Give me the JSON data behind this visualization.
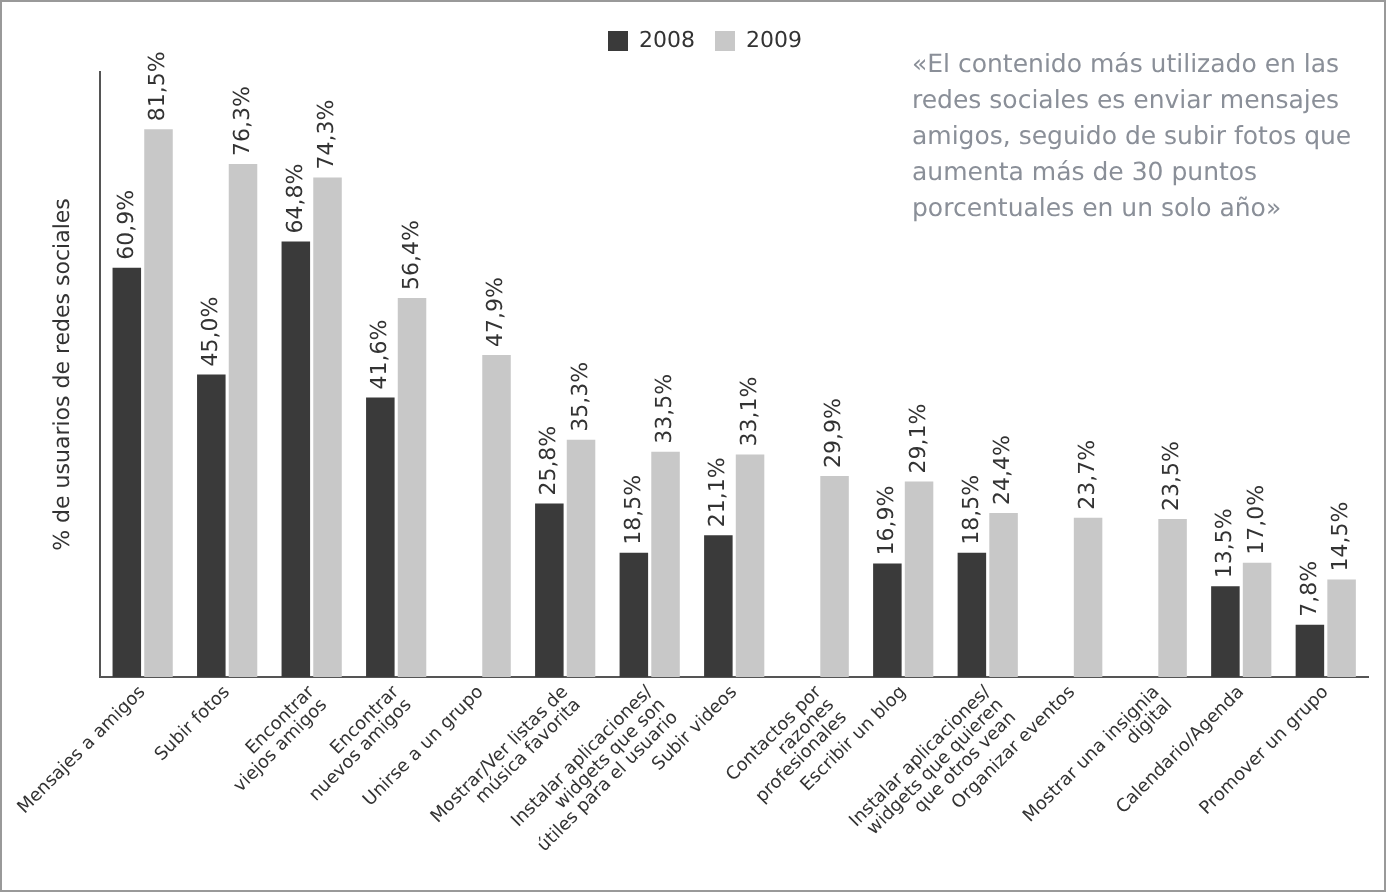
{
  "chart_data": {
    "type": "bar",
    "ylabel": "% de usuarios de redes sociales",
    "categories": [
      "Mensajes a amigos",
      "Subir fotos",
      "Encontrar\nviejos amigos",
      "Encontrar\nnuevos amigos",
      "Unirse a un grupo",
      "Mostrar/Ver listas de\nmúsica favorita",
      "Instalar aplicaciones/\nwidgets que son\nútiles para el usuario",
      "Subir videos",
      "Contactos por\nrazones\nprofesionales",
      "Escribir un blog",
      "Instalar aplicaciones/\nwidgets que quieren\nque otros vean",
      "Organizar eventos",
      "Mostrar una insignia\ndigital",
      "Calendario/Agenda",
      "Promover un grupo"
    ],
    "series": [
      {
        "name": "2008",
        "color": "#3a3a3a",
        "values": [
          60.9,
          45.0,
          64.8,
          41.6,
          null,
          25.8,
          18.5,
          21.1,
          null,
          16.9,
          18.5,
          null,
          null,
          13.5,
          7.8
        ],
        "value_labels": [
          "60,9%",
          "45,0%",
          "64,8%",
          "41,6%",
          null,
          "25,8%",
          "18,5%",
          "21,1%",
          null,
          "16,9%",
          "18,5%",
          null,
          null,
          "13,5%",
          "7,8%"
        ]
      },
      {
        "name": "2009",
        "color": "#c8c8c8",
        "values": [
          81.5,
          76.3,
          74.3,
          56.4,
          47.9,
          35.3,
          33.5,
          33.1,
          29.9,
          29.1,
          24.4,
          23.7,
          23.5,
          17.0,
          14.5
        ],
        "value_labels": [
          "81,5%",
          "76,3%",
          "74,3%",
          "56,4%",
          "47,9%",
          "35,3%",
          "33,5%",
          "33,1%",
          "29,9%",
          "29,1%",
          "24,4%",
          "23,7%",
          "23,5%",
          "17,0%",
          "14,5%"
        ]
      }
    ],
    "legend": "top",
    "grid": false,
    "annotations": [
      "«El contenido más utilizado en las redes sociales es enviar mensajes amigos, seguido de subir fotos que aumenta más de 30 puntos porcentuales en un solo año»"
    ]
  }
}
